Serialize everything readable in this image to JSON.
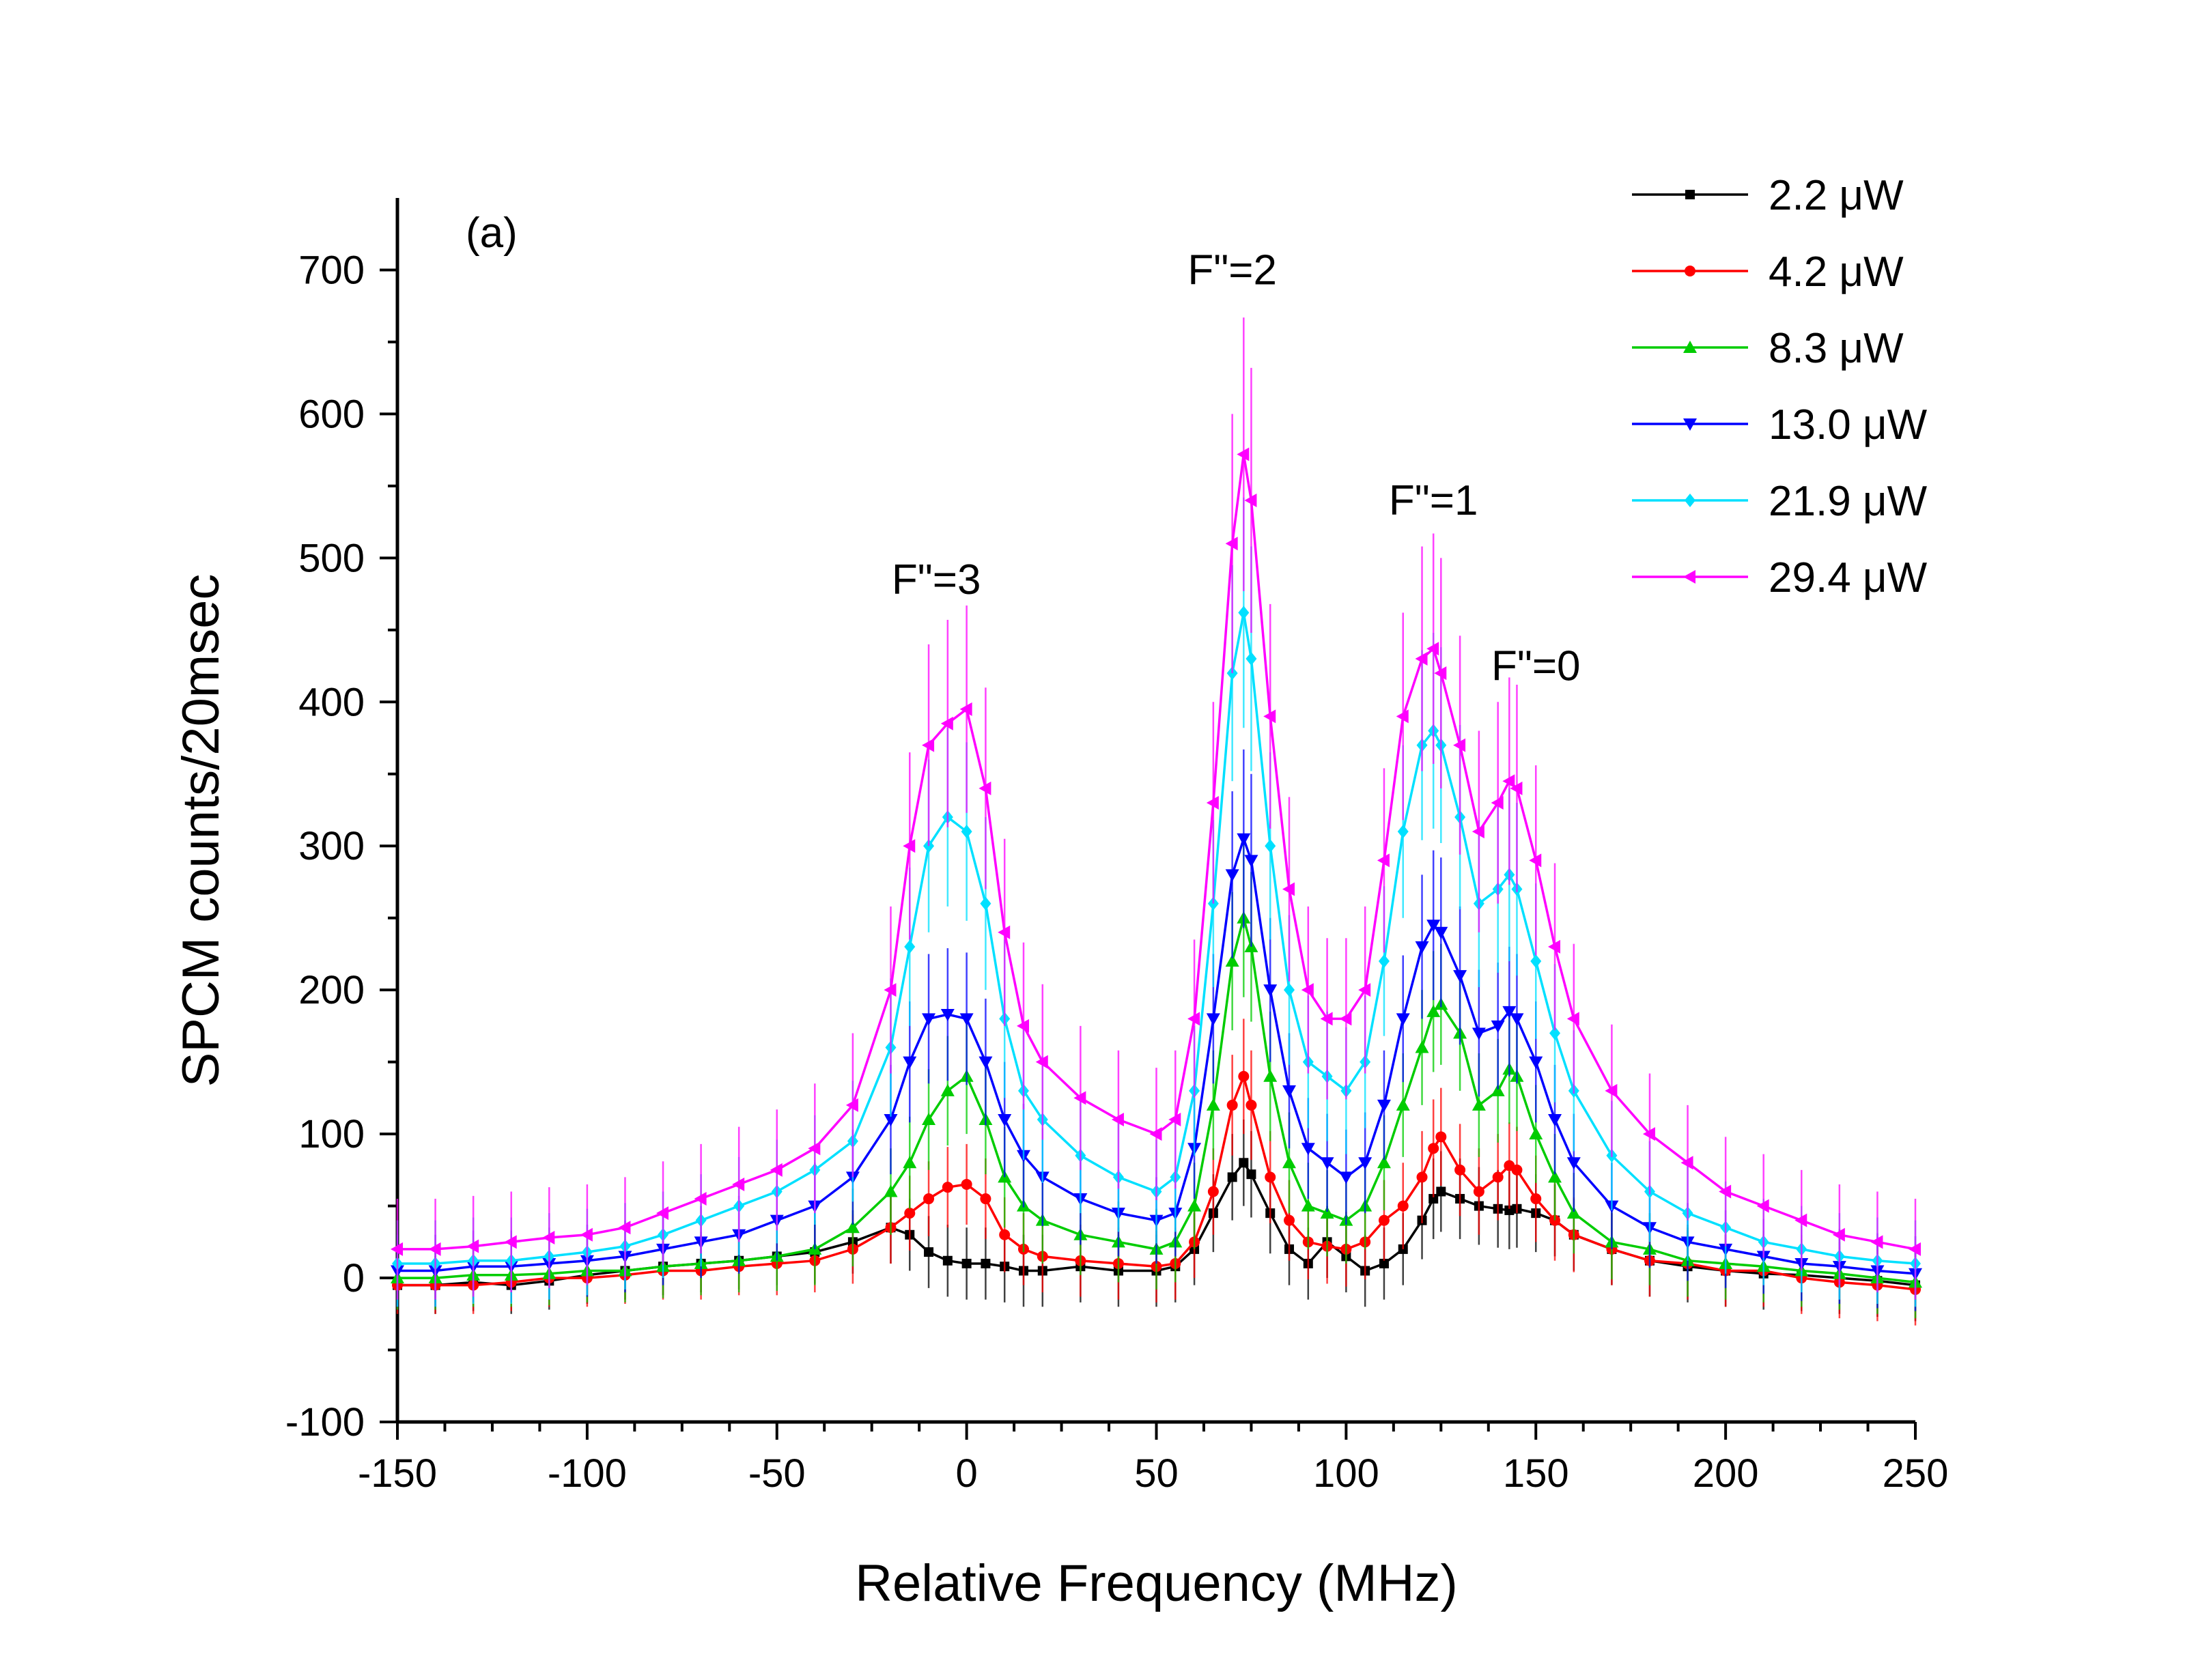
{
  "chart_data": {
    "type": "line",
    "title": "",
    "panel_label": "(a)",
    "xlabel": "Relative Frequency (MHz)",
    "ylabel": "SPCM counts/20msec",
    "xlim": [
      -150,
      250
    ],
    "ylim": [
      -100,
      750
    ],
    "x_ticks": [
      -150,
      -100,
      -50,
      0,
      50,
      100,
      150,
      200,
      250
    ],
    "y_ticks": [
      -100,
      0,
      100,
      200,
      300,
      400,
      500,
      600,
      700
    ],
    "grid": false,
    "legend_position": "top-right",
    "error_bars": true,
    "annotations": [
      {
        "text": "F\"=3",
        "x": -8,
        "y": 475
      },
      {
        "text": "F\"=2",
        "x": 70,
        "y": 690
      },
      {
        "text": "F\"=1",
        "x": 123,
        "y": 530
      },
      {
        "text": "F\"=0",
        "x": 150,
        "y": 415
      }
    ],
    "x": [
      -150,
      -140,
      -130,
      -120,
      -110,
      -100,
      -90,
      -80,
      -70,
      -60,
      -50,
      -40,
      -30,
      -20,
      -15,
      -10,
      -5,
      0,
      5,
      10,
      15,
      20,
      30,
      40,
      50,
      55,
      60,
      65,
      70,
      73,
      75,
      80,
      85,
      90,
      95,
      100,
      105,
      110,
      115,
      120,
      123,
      125,
      130,
      135,
      140,
      143,
      145,
      150,
      155,
      160,
      170,
      180,
      190,
      200,
      210,
      220,
      230,
      240,
      250
    ],
    "series": [
      {
        "name": "2.2 μW",
        "color": "#000000",
        "marker": "square",
        "values": [
          -5,
          -5,
          -3,
          -5,
          -2,
          2,
          5,
          8,
          10,
          12,
          15,
          18,
          25,
          35,
          30,
          18,
          12,
          10,
          10,
          8,
          5,
          5,
          8,
          5,
          5,
          8,
          20,
          45,
          70,
          80,
          72,
          45,
          20,
          10,
          25,
          15,
          5,
          10,
          20,
          40,
          55,
          60,
          55,
          50,
          48,
          47,
          48,
          45,
          40,
          30,
          20,
          12,
          8,
          5,
          3,
          2,
          0,
          -2,
          -5
        ],
        "error": [
          20,
          20,
          20,
          20,
          20,
          20,
          20,
          20,
          20,
          20,
          20,
          22,
          22,
          25,
          25,
          25,
          25,
          25,
          25,
          25,
          25,
          25,
          25,
          25,
          25,
          25,
          25,
          27,
          30,
          30,
          30,
          28,
          25,
          25,
          25,
          25,
          25,
          25,
          25,
          27,
          28,
          28,
          28,
          27,
          27,
          27,
          27,
          27,
          25,
          25,
          25,
          25,
          25,
          25,
          25,
          25,
          25,
          25,
          25
        ]
      },
      {
        "name": "4.2 μW",
        "color": "#ff0000",
        "marker": "circle",
        "values": [
          -5,
          -5,
          -5,
          -3,
          0,
          0,
          2,
          5,
          5,
          8,
          10,
          12,
          20,
          35,
          45,
          55,
          63,
          65,
          55,
          30,
          20,
          15,
          12,
          10,
          8,
          10,
          25,
          60,
          120,
          140,
          120,
          70,
          40,
          25,
          22,
          20,
          25,
          40,
          50,
          70,
          90,
          98,
          75,
          60,
          70,
          78,
          75,
          55,
          40,
          30,
          20,
          12,
          10,
          5,
          5,
          0,
          -3,
          -5,
          -8
        ],
        "error": [
          20,
          20,
          20,
          20,
          20,
          20,
          20,
          20,
          20,
          20,
          22,
          22,
          24,
          25,
          26,
          26,
          28,
          28,
          28,
          26,
          25,
          25,
          25,
          25,
          25,
          25,
          25,
          30,
          35,
          40,
          38,
          32,
          28,
          26,
          26,
          26,
          26,
          28,
          30,
          32,
          34,
          34,
          32,
          30,
          30,
          30,
          30,
          30,
          28,
          26,
          25,
          25,
          25,
          25,
          25,
          25,
          25,
          25,
          25
        ]
      },
      {
        "name": "8.3 μW",
        "color": "#00cc00",
        "marker": "triangle-up",
        "values": [
          0,
          0,
          2,
          2,
          3,
          5,
          5,
          8,
          10,
          12,
          15,
          20,
          35,
          60,
          80,
          110,
          130,
          140,
          110,
          70,
          50,
          40,
          30,
          25,
          20,
          25,
          50,
          120,
          220,
          250,
          230,
          140,
          80,
          50,
          45,
          40,
          50,
          80,
          120,
          160,
          185,
          190,
          170,
          120,
          130,
          145,
          140,
          100,
          70,
          45,
          25,
          20,
          12,
          10,
          8,
          5,
          3,
          0,
          -3
        ],
        "error": [
          22,
          22,
          22,
          22,
          22,
          22,
          22,
          22,
          22,
          22,
          24,
          25,
          27,
          30,
          32,
          35,
          38,
          40,
          38,
          35,
          32,
          30,
          28,
          28,
          28,
          28,
          30,
          38,
          48,
          55,
          52,
          45,
          35,
          30,
          30,
          30,
          30,
          33,
          36,
          40,
          42,
          42,
          40,
          36,
          36,
          38,
          38,
          34,
          30,
          28,
          26,
          25,
          25,
          25,
          25,
          25,
          25,
          25,
          25
        ]
      },
      {
        "name": "13.0 μW",
        "color": "#0000ff",
        "marker": "triangle-down",
        "values": [
          5,
          5,
          8,
          8,
          10,
          12,
          15,
          20,
          25,
          30,
          40,
          50,
          70,
          110,
          150,
          180,
          183,
          180,
          150,
          110,
          85,
          70,
          55,
          45,
          40,
          45,
          90,
          180,
          280,
          305,
          290,
          200,
          130,
          90,
          80,
          70,
          80,
          120,
          180,
          230,
          245,
          240,
          210,
          170,
          175,
          185,
          180,
          150,
          110,
          80,
          50,
          35,
          25,
          20,
          15,
          10,
          8,
          5,
          3
        ],
        "error": [
          25,
          25,
          25,
          25,
          25,
          25,
          25,
          25,
          25,
          27,
          28,
          30,
          33,
          38,
          42,
          45,
          46,
          46,
          44,
          40,
          36,
          34,
          32,
          30,
          30,
          30,
          35,
          45,
          58,
          62,
          60,
          50,
          40,
          35,
          34,
          33,
          35,
          38,
          44,
          50,
          52,
          52,
          48,
          44,
          44,
          45,
          45,
          42,
          38,
          34,
          30,
          28,
          27,
          27,
          26,
          26,
          26,
          26,
          26
        ]
      },
      {
        "name": "21.9 μW",
        "color": "#00e0ff",
        "marker": "diamond",
        "values": [
          10,
          10,
          12,
          12,
          15,
          18,
          22,
          30,
          40,
          50,
          60,
          75,
          95,
          160,
          230,
          300,
          320,
          310,
          260,
          180,
          130,
          110,
          85,
          70,
          60,
          70,
          130,
          260,
          420,
          462,
          430,
          300,
          200,
          150,
          140,
          130,
          150,
          220,
          310,
          370,
          380,
          370,
          320,
          260,
          270,
          280,
          270,
          220,
          170,
          130,
          85,
          60,
          45,
          35,
          25,
          20,
          15,
          12,
          10
        ],
        "error": [
          30,
          30,
          30,
          30,
          30,
          30,
          30,
          30,
          32,
          34,
          36,
          38,
          42,
          48,
          55,
          60,
          62,
          62,
          60,
          55,
          48,
          44,
          40,
          38,
          36,
          38,
          45,
          58,
          75,
          80,
          78,
          65,
          52,
          46,
          45,
          44,
          46,
          52,
          60,
          66,
          68,
          68,
          64,
          58,
          58,
          60,
          60,
          54,
          48,
          42,
          38,
          35,
          33,
          32,
          30,
          30,
          30,
          30,
          30
        ]
      },
      {
        "name": "29.4 μW",
        "color": "#ff00ff",
        "marker": "triangle-left",
        "values": [
          20,
          20,
          22,
          25,
          28,
          30,
          35,
          45,
          55,
          65,
          75,
          90,
          120,
          200,
          300,
          370,
          385,
          395,
          340,
          240,
          175,
          150,
          125,
          110,
          100,
          110,
          180,
          330,
          510,
          572,
          540,
          390,
          270,
          200,
          180,
          180,
          200,
          290,
          390,
          430,
          437,
          420,
          370,
          310,
          330,
          345,
          340,
          290,
          230,
          180,
          130,
          100,
          80,
          60,
          50,
          40,
          30,
          25,
          20
        ],
        "error": [
          35,
          35,
          35,
          35,
          35,
          35,
          35,
          36,
          38,
          40,
          42,
          45,
          50,
          58,
          65,
          70,
          72,
          72,
          70,
          65,
          58,
          54,
          50,
          48,
          46,
          48,
          55,
          70,
          90,
          95,
          92,
          78,
          64,
          58,
          56,
          56,
          58,
          64,
          72,
          78,
          80,
          80,
          76,
          70,
          70,
          72,
          72,
          66,
          58,
          52,
          46,
          42,
          40,
          38,
          36,
          35,
          35,
          35,
          35
        ]
      }
    ]
  }
}
